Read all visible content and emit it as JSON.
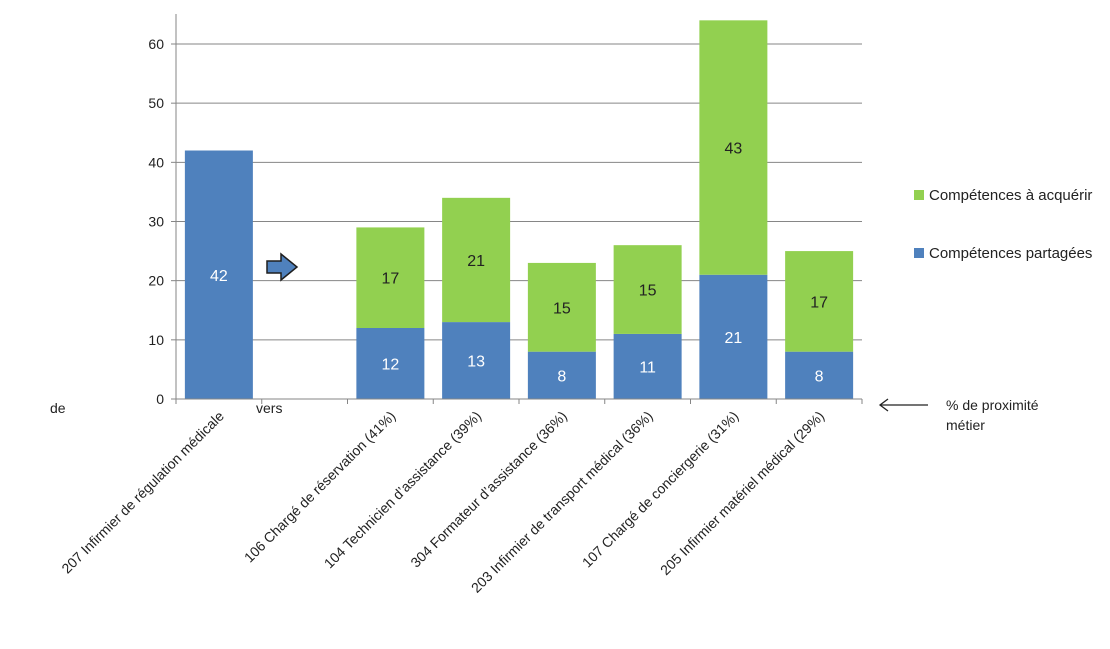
{
  "chart_data": {
    "type": "bar",
    "stacked": true,
    "categories": [
      "207 Infirmier de régulation médicale",
      "106 Chargé de réservation (41%)",
      "104 Technicien d’assistance  (39%)",
      "304 Formateur d’assistance (36%)",
      "203 Infirmier de transport médical (36%)",
      "107 Chargé de conciergerie (31%)",
      "205 Infirmier matériel médical (29%)"
    ],
    "series": [
      {
        "name": "Compétences partagées",
        "color": "#4F81BD",
        "values": [
          42,
          12,
          13,
          8,
          11,
          21,
          8
        ]
      },
      {
        "name": "Compétences à acquérir",
        "color": "#92D050",
        "values": [
          0,
          17,
          21,
          15,
          15,
          43,
          17
        ]
      }
    ],
    "ylim": [
      0,
      65
    ],
    "yticks": [
      0,
      10,
      20,
      30,
      40,
      50,
      60
    ],
    "grid": true,
    "legend": "right",
    "legend_order": [
      "Compétences à acquérir",
      "Compétences partagées"
    ],
    "annotations": {
      "left": "de",
      "middle": "vers",
      "right": "% de proximité métier",
      "right_lines": [
        "% de proximité",
        "métier"
      ]
    },
    "colors": {
      "axis": "#868686",
      "grid": "#868686",
      "arrow_fill": "#4F81BD"
    }
  }
}
